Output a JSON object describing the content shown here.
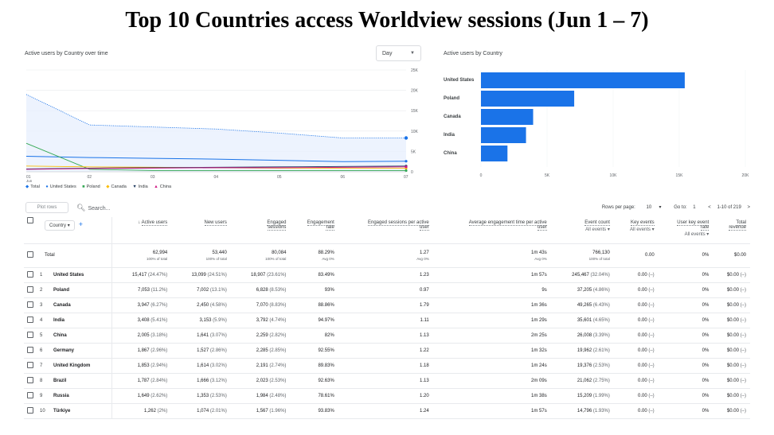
{
  "title": "Top 10 Countries access Worldview sessions (Jun 1 – 7)",
  "line_card": {
    "title": "Active users by Country over time",
    "dropdown": "Day",
    "y_ticks": [
      "25K",
      "20K",
      "15K",
      "10K",
      "5K",
      "0"
    ],
    "x_ticks": [
      "01",
      "02",
      "03",
      "04",
      "05",
      "06",
      "07"
    ],
    "x_sub": "Jun",
    "legend": [
      {
        "label": "Total",
        "color": "#1a73e8"
      },
      {
        "label": "United States",
        "color": "#1a73e8"
      },
      {
        "label": "Poland",
        "color": "#34a853"
      },
      {
        "label": "Canada",
        "color": "#fbbc04"
      },
      {
        "label": "India",
        "color": "#1f3a5f"
      },
      {
        "label": "China",
        "color": "#d01884"
      }
    ]
  },
  "bar_card": {
    "title": "Active users by Country",
    "x_ticks": [
      "0",
      "5K",
      "10K",
      "15K",
      "20K"
    ],
    "bar_color": "#1a73e8"
  },
  "chart_data": [
    {
      "type": "line",
      "title": "Active users by Country over time",
      "x": [
        "01",
        "02",
        "03",
        "04",
        "05",
        "06",
        "07"
      ],
      "ylim": [
        0,
        25000
      ],
      "series": [
        {
          "name": "Total",
          "values": [
            19000,
            11500,
            11000,
            10500,
            9500,
            8300,
            8300
          ]
        },
        {
          "name": "United States",
          "values": [
            3800,
            3500,
            3300,
            3100,
            2800,
            2500,
            2600
          ]
        },
        {
          "name": "Poland",
          "values": [
            7000,
            600,
            300,
            300,
            300,
            300,
            300
          ]
        },
        {
          "name": "Canada",
          "values": [
            1400,
            1200,
            1100,
            1000,
            900,
            900,
            900
          ]
        },
        {
          "name": "India",
          "values": [
            700,
            900,
            1000,
            1100,
            1200,
            1300,
            1400
          ]
        },
        {
          "name": "China",
          "values": [
            600,
            800,
            900,
            1000,
            1000,
            1100,
            1200
          ]
        }
      ]
    },
    {
      "type": "bar",
      "title": "Active users by Country",
      "categories": [
        "United States",
        "Poland",
        "Canada",
        "India",
        "China"
      ],
      "values": [
        15417,
        7053,
        3947,
        3408,
        2005
      ],
      "xlim": [
        0,
        20000
      ]
    }
  ],
  "toolbar": {
    "plot_rows": "Plot rows",
    "search_placeholder": "Search...",
    "rows_per_page_label": "Rows per page:",
    "rows_per_page": "10",
    "goto_label": "Go to:",
    "goto_value": "1",
    "range": "1-10 of 219"
  },
  "table": {
    "dimension": "Country",
    "headers": {
      "active_users": "Active users",
      "new_users": "New users",
      "engaged_sessions_1": "Engaged",
      "engaged_sessions_2": "sessions",
      "engagement_rate_1": "Engagement",
      "engagement_rate_2": "rate",
      "esp_1": "Engaged sessions per active",
      "esp_2": "user",
      "aet_1": "Average engagement time per active",
      "aet_2": "user",
      "event_count": "Event count",
      "event_count_sub": "All events",
      "key_events": "Key events",
      "key_events_sub": "All events",
      "ukr_1": "User key event",
      "ukr_2": "rate",
      "ukr_sub": "All events",
      "rev_1": "Total",
      "rev_2": "revenue"
    },
    "total": {
      "label": "Total",
      "active_users": "62,994",
      "active_users_pct": "100% of total",
      "new_users": "53,440",
      "new_users_pct": "100% of total",
      "engaged_sessions": "80,084",
      "engaged_sessions_pct": "100% of total",
      "engagement_rate": "88.29%",
      "engagement_rate_pct": "Avg 0%",
      "esp": "1.27",
      "esp_pct": "Avg 0%",
      "aet": "1m 43s",
      "aet_pct": "Avg 0%",
      "event_count": "766,130",
      "event_count_pct": "100% of total",
      "key_events": "0.00",
      "ukr": "0%",
      "revenue": "$0.00"
    },
    "rows": [
      {
        "i": "1",
        "country": "United States",
        "active": "15,417",
        "active_p": "(24.47%)",
        "new": "13,099",
        "new_p": "(24.51%)",
        "eng": "18,907",
        "eng_p": "(23.61%)",
        "rate": "83.49%",
        "esp": "1.23",
        "aet": "1m 57s",
        "ev": "245,467",
        "ev_p": "(32.04%)",
        "key": "0.00",
        "key_p": "(–)",
        "ukr": "0%",
        "rev": "$0.00",
        "rev_p": "(–)"
      },
      {
        "i": "2",
        "country": "Poland",
        "active": "7,053",
        "active_p": "(11.2%)",
        "new": "7,002",
        "new_p": "(13.1%)",
        "eng": "6,828",
        "eng_p": "(8.53%)",
        "rate": "93%",
        "esp": "0.97",
        "aet": "9s",
        "ev": "37,205",
        "ev_p": "(4.86%)",
        "key": "0.00",
        "key_p": "(–)",
        "ukr": "0%",
        "rev": "$0.00",
        "rev_p": "(–)"
      },
      {
        "i": "3",
        "country": "Canada",
        "active": "3,947",
        "active_p": "(6.27%)",
        "new": "2,450",
        "new_p": "(4.58%)",
        "eng": "7,070",
        "eng_p": "(8.83%)",
        "rate": "88.86%",
        "esp": "1.79",
        "aet": "1m 36s",
        "ev": "49,265",
        "ev_p": "(6.43%)",
        "key": "0.00",
        "key_p": "(–)",
        "ukr": "0%",
        "rev": "$0.00",
        "rev_p": "(–)"
      },
      {
        "i": "4",
        "country": "India",
        "active": "3,408",
        "active_p": "(5.41%)",
        "new": "3,153",
        "new_p": "(5.9%)",
        "eng": "3,792",
        "eng_p": "(4.74%)",
        "rate": "94.97%",
        "esp": "1.11",
        "aet": "1m 29s",
        "ev": "35,601",
        "ev_p": "(4.65%)",
        "key": "0.00",
        "key_p": "(–)",
        "ukr": "0%",
        "rev": "$0.00",
        "rev_p": "(–)"
      },
      {
        "i": "5",
        "country": "China",
        "active": "2,005",
        "active_p": "(3.18%)",
        "new": "1,641",
        "new_p": "(3.07%)",
        "eng": "2,259",
        "eng_p": "(2.82%)",
        "rate": "82%",
        "esp": "1.13",
        "aet": "2m 25s",
        "ev": "26,008",
        "ev_p": "(3.39%)",
        "key": "0.00",
        "key_p": "(–)",
        "ukr": "0%",
        "rev": "$0.00",
        "rev_p": "(–)"
      },
      {
        "i": "6",
        "country": "Germany",
        "active": "1,867",
        "active_p": "(2.96%)",
        "new": "1,527",
        "new_p": "(2.86%)",
        "eng": "2,285",
        "eng_p": "(2.85%)",
        "rate": "92.55%",
        "esp": "1.22",
        "aet": "1m 32s",
        "ev": "19,962",
        "ev_p": "(2.61%)",
        "key": "0.00",
        "key_p": "(–)",
        "ukr": "0%",
        "rev": "$0.00",
        "rev_p": "(–)"
      },
      {
        "i": "7",
        "country": "United Kingdom",
        "active": "1,853",
        "active_p": "(2.94%)",
        "new": "1,614",
        "new_p": "(3.02%)",
        "eng": "2,191",
        "eng_p": "(2.74%)",
        "rate": "89.83%",
        "esp": "1.18",
        "aet": "1m 24s",
        "ev": "19,376",
        "ev_p": "(2.53%)",
        "key": "0.00",
        "key_p": "(–)",
        "ukr": "0%",
        "rev": "$0.00",
        "rev_p": "(–)"
      },
      {
        "i": "8",
        "country": "Brazil",
        "active": "1,787",
        "active_p": "(2.84%)",
        "new": "1,666",
        "new_p": "(3.12%)",
        "eng": "2,023",
        "eng_p": "(2.53%)",
        "rate": "92.63%",
        "esp": "1.13",
        "aet": "2m 09s",
        "ev": "21,062",
        "ev_p": "(2.75%)",
        "key": "0.00",
        "key_p": "(–)",
        "ukr": "0%",
        "rev": "$0.00",
        "rev_p": "(–)"
      },
      {
        "i": "9",
        "country": "Russia",
        "active": "1,649",
        "active_p": "(2.62%)",
        "new": "1,353",
        "new_p": "(2.53%)",
        "eng": "1,984",
        "eng_p": "(2.48%)",
        "rate": "78.61%",
        "esp": "1.20",
        "aet": "1m 38s",
        "ev": "15,209",
        "ev_p": "(1.99%)",
        "key": "0.00",
        "key_p": "(–)",
        "ukr": "0%",
        "rev": "$0.00",
        "rev_p": "(–)"
      },
      {
        "i": "10",
        "country": "Türkiye",
        "active": "1,262",
        "active_p": "(2%)",
        "new": "1,074",
        "new_p": "(2.01%)",
        "eng": "1,567",
        "eng_p": "(1.96%)",
        "rate": "93.83%",
        "esp": "1.24",
        "aet": "1m 57s",
        "ev": "14,796",
        "ev_p": "(1.93%)",
        "key": "0.00",
        "key_p": "(–)",
        "ukr": "0%",
        "rev": "$0.00",
        "rev_p": "(–)"
      }
    ]
  }
}
